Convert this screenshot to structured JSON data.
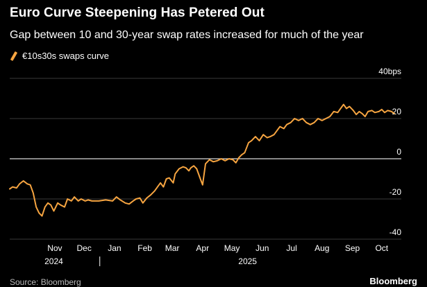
{
  "chart_data": {
    "type": "line",
    "title": "Euro Curve Steepening Has Petered Out",
    "subtitle": "Gap between 10 and 30-year swap rates increased for much of the year",
    "xlabel": "",
    "ylabel": "bps",
    "ylim": [
      -40,
      40
    ],
    "y_ticks": [
      {
        "value": 40,
        "label": "40bps"
      },
      {
        "value": 20,
        "label": "20"
      },
      {
        "value": 0,
        "label": "0"
      },
      {
        "value": -20,
        "label": "-20"
      },
      {
        "value": -40,
        "label": "-40"
      }
    ],
    "x_range": [
      "2024-10-01",
      "2025-11-05"
    ],
    "x_ticks": [
      {
        "date": "2024-11-01",
        "label": "Nov"
      },
      {
        "date": "2024-12-01",
        "label": "Dec"
      },
      {
        "date": "2025-01-01",
        "label": "Jan"
      },
      {
        "date": "2025-02-01",
        "label": "Feb"
      },
      {
        "date": "2025-03-01",
        "label": "Mar"
      },
      {
        "date": "2025-04-01",
        "label": "Apr"
      },
      {
        "date": "2025-05-01",
        "label": "May"
      },
      {
        "date": "2025-06-01",
        "label": "Jun"
      },
      {
        "date": "2025-07-01",
        "label": "Jul"
      },
      {
        "date": "2025-08-01",
        "label": "Aug"
      },
      {
        "date": "2025-09-01",
        "label": "Sep"
      },
      {
        "date": "2025-10-01",
        "label": "Oct"
      }
    ],
    "year_labels": [
      {
        "date": "2024-11-15",
        "label": "2024"
      },
      {
        "date": "2025-06-01",
        "label": "2025"
      }
    ],
    "year_divider": "2025-01-01",
    "grid": true,
    "legend": "top-left",
    "series": [
      {
        "name": "€10s30s swaps curve",
        "color": "#f7a541",
        "points": [
          [
            "2024-10-01",
            -15
          ],
          [
            "2024-10-04",
            -14
          ],
          [
            "2024-10-08",
            -14.5
          ],
          [
            "2024-10-11",
            -12.5
          ],
          [
            "2024-10-15",
            -11
          ],
          [
            "2024-10-19",
            -12.5
          ],
          [
            "2024-10-22",
            -13
          ],
          [
            "2024-10-25",
            -17
          ],
          [
            "2024-10-28",
            -24
          ],
          [
            "2024-10-31",
            -27
          ],
          [
            "2024-11-03",
            -28.5
          ],
          [
            "2024-11-06",
            -24
          ],
          [
            "2024-11-09",
            -22
          ],
          [
            "2024-11-12",
            -23
          ],
          [
            "2024-11-15",
            -26
          ],
          [
            "2024-11-19",
            -22
          ],
          [
            "2024-11-22",
            -23
          ],
          [
            "2024-11-26",
            -24
          ],
          [
            "2024-11-29",
            -20
          ],
          [
            "2024-12-03",
            -21
          ],
          [
            "2024-12-06",
            -19
          ],
          [
            "2024-12-10",
            -21
          ],
          [
            "2024-12-13",
            -20
          ],
          [
            "2024-12-17",
            -21
          ],
          [
            "2024-12-20",
            -20.5
          ],
          [
            "2024-12-24",
            -21
          ],
          [
            "2024-12-31",
            -21
          ],
          [
            "2025-01-07",
            -20.5
          ],
          [
            "2025-01-14",
            -21
          ],
          [
            "2025-01-18",
            -19
          ],
          [
            "2025-01-22",
            -20.5
          ],
          [
            "2025-01-27",
            -22
          ],
          [
            "2025-01-31",
            -22.5
          ],
          [
            "2025-02-04",
            -21
          ],
          [
            "2025-02-07",
            -20
          ],
          [
            "2025-02-11",
            -19.5
          ],
          [
            "2025-02-14",
            -22
          ],
          [
            "2025-02-18",
            -19.5
          ],
          [
            "2025-02-22",
            -18
          ],
          [
            "2025-02-26",
            -16
          ],
          [
            "2025-03-01",
            -14
          ],
          [
            "2025-03-04",
            -12
          ],
          [
            "2025-03-07",
            -14
          ],
          [
            "2025-03-10",
            -10
          ],
          [
            "2025-03-13",
            -9.5
          ],
          [
            "2025-03-17",
            -12
          ],
          [
            "2025-03-19",
            -7.5
          ],
          [
            "2025-03-23",
            -5
          ],
          [
            "2025-03-27",
            -4
          ],
          [
            "2025-03-30",
            -4.5
          ],
          [
            "2025-04-02",
            -6
          ],
          [
            "2025-04-04",
            -4.5
          ],
          [
            "2025-04-07",
            -3.5
          ],
          [
            "2025-04-10",
            -5
          ],
          [
            "2025-04-13",
            -9
          ],
          [
            "2025-04-16",
            -13
          ],
          [
            "2025-04-19",
            -2.5
          ],
          [
            "2025-04-23",
            -0.5
          ],
          [
            "2025-04-27",
            -1.5
          ],
          [
            "2025-05-01",
            -1
          ],
          [
            "2025-05-05",
            0
          ],
          [
            "2025-05-09",
            -1
          ],
          [
            "2025-05-13",
            0
          ],
          [
            "2025-05-17",
            -0.5
          ],
          [
            "2025-05-20",
            -2
          ],
          [
            "2025-05-23",
            0.5
          ],
          [
            "2025-05-26",
            2
          ],
          [
            "2025-05-29",
            3
          ],
          [
            "2025-06-02",
            8
          ],
          [
            "2025-06-05",
            9
          ],
          [
            "2025-06-09",
            11
          ],
          [
            "2025-06-13",
            9
          ],
          [
            "2025-06-17",
            12
          ],
          [
            "2025-06-21",
            10.5
          ],
          [
            "2025-06-24",
            11
          ],
          [
            "2025-06-28",
            12
          ],
          [
            "2025-07-01",
            14
          ],
          [
            "2025-07-04",
            16
          ],
          [
            "2025-07-08",
            15
          ],
          [
            "2025-07-11",
            17
          ],
          [
            "2025-07-15",
            18
          ],
          [
            "2025-07-19",
            20
          ],
          [
            "2025-07-23",
            19
          ],
          [
            "2025-07-27",
            20
          ],
          [
            "2025-07-31",
            18
          ],
          [
            "2025-08-04",
            17
          ],
          [
            "2025-08-08",
            18
          ],
          [
            "2025-08-12",
            20
          ],
          [
            "2025-08-16",
            19
          ],
          [
            "2025-08-20",
            20
          ],
          [
            "2025-08-24",
            21
          ],
          [
            "2025-08-28",
            23.5
          ],
          [
            "2025-09-01",
            23
          ],
          [
            "2025-09-04",
            25
          ],
          [
            "2025-09-07",
            27
          ],
          [
            "2025-09-10",
            25
          ],
          [
            "2025-09-13",
            26
          ],
          [
            "2025-09-17",
            24
          ],
          [
            "2025-09-20",
            22
          ],
          [
            "2025-09-23",
            23.5
          ],
          [
            "2025-09-26",
            22.5
          ],
          [
            "2025-09-29",
            21
          ],
          [
            "2025-10-02",
            23.5
          ],
          [
            "2025-10-06",
            24
          ],
          [
            "2025-10-09",
            23
          ],
          [
            "2025-10-13",
            23.5
          ],
          [
            "2025-10-16",
            24.5
          ],
          [
            "2025-10-19",
            23
          ],
          [
            "2025-10-22",
            24
          ],
          [
            "2025-10-26",
            23.5
          ],
          [
            "2025-10-29",
            22.5
          ]
        ]
      }
    ]
  },
  "footer": {
    "source": "Source: Bloomberg",
    "brand": "Bloomberg"
  }
}
